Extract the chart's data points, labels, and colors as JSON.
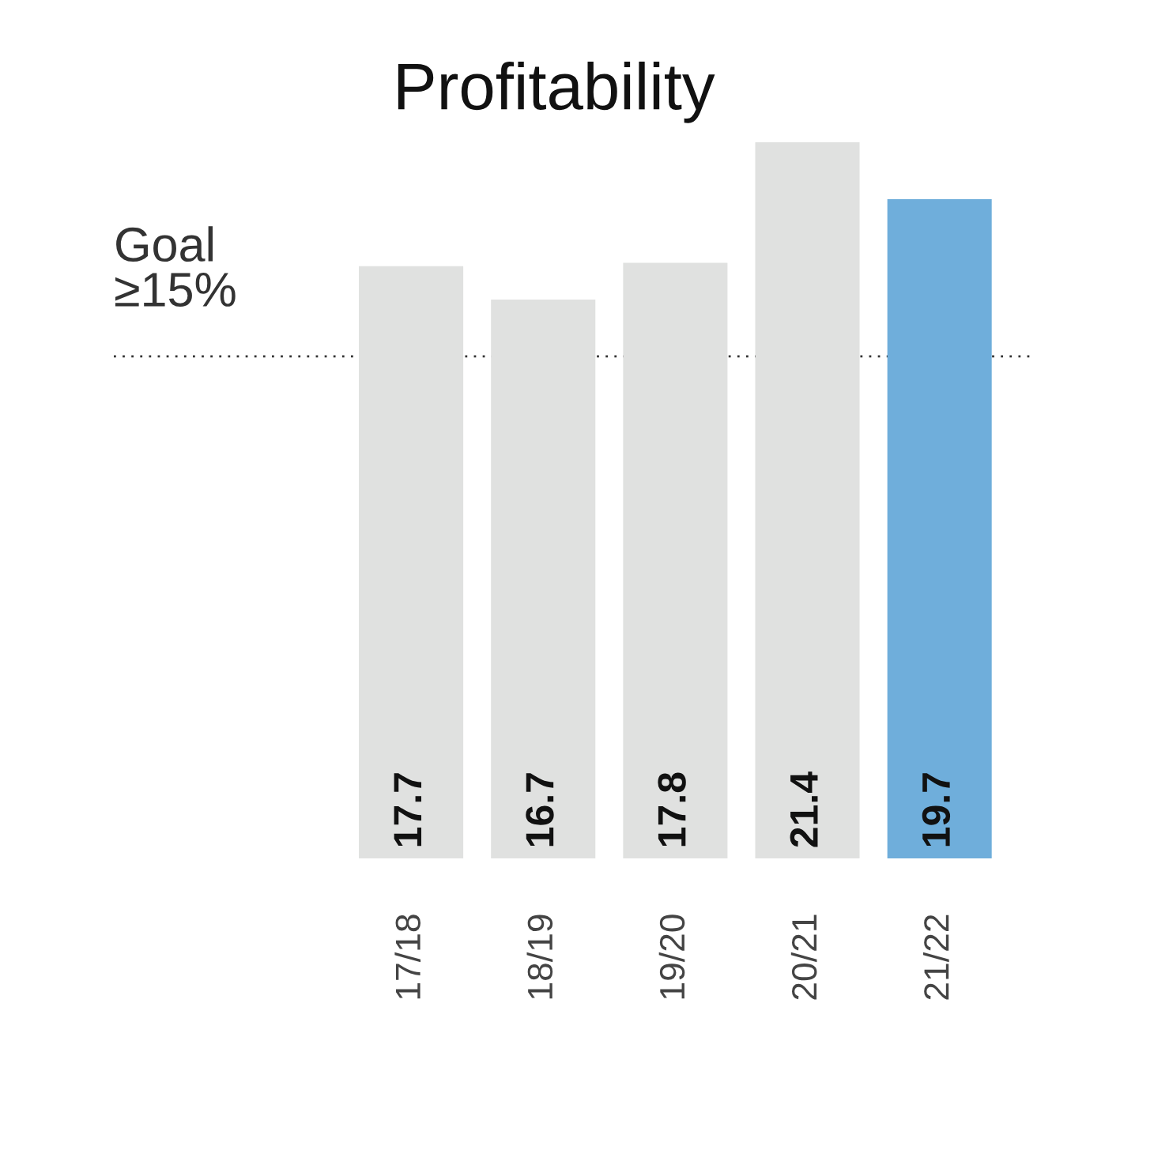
{
  "chart_data": {
    "type": "bar",
    "title": "Profitability",
    "categories": [
      "17/18",
      "18/19",
      "19/20",
      "20/21",
      "21/22"
    ],
    "values": [
      17.7,
      16.7,
      17.8,
      21.4,
      19.7
    ],
    "colors": [
      "#e0e1e0",
      "#e0e1e0",
      "#e0e1e0",
      "#e0e1e0",
      "#6faedb"
    ],
    "data_labels": true,
    "grid": false,
    "legend": false,
    "ref_lines": [
      {
        "axis": "y",
        "value": 15,
        "label": "Goal\n≥15%",
        "color": "#333333",
        "line_style": "dotted"
      }
    ]
  }
}
